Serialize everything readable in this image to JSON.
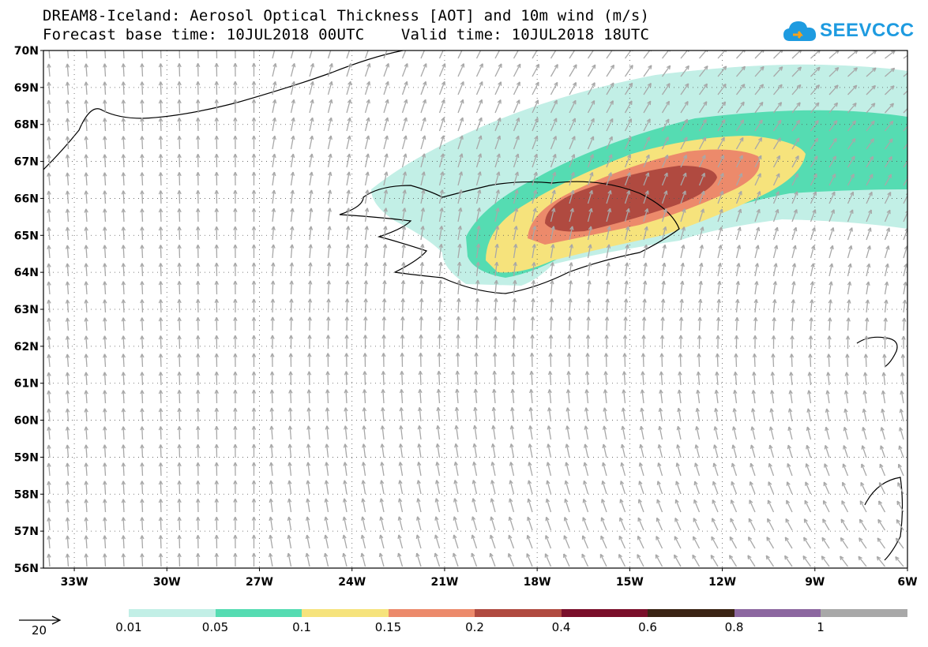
{
  "title": {
    "line1": "DREAM8-Iceland: Aerosol Optical Thickness [AOT] and 10m wind (m/s)",
    "line2": "Forecast base time: 10JUL2018 00UTC    Valid time: 10JUL2018 18UTC"
  },
  "logo": {
    "text": "SEEVCCC",
    "icon": "cloud-logo-icon",
    "color": "#1e9be0"
  },
  "map": {
    "lat_labels": [
      "70N",
      "69N",
      "68N",
      "67N",
      "66N",
      "65N",
      "64N",
      "63N",
      "62N",
      "61N",
      "60N",
      "59N",
      "58N",
      "57N",
      "56N"
    ],
    "lon_labels": [
      "33W",
      "30W",
      "27W",
      "24W",
      "21W",
      "18W",
      "15W",
      "12W",
      "9W",
      "6W"
    ],
    "lat_range": [
      56,
      70
    ],
    "lon_range": [
      -34.0,
      -6.0
    ],
    "grid": "dotted",
    "arrow_color": "#a8a8a8"
  },
  "colorbar": {
    "labels": [
      "0.01",
      "0.05",
      "0.1",
      "0.15",
      "0.2",
      "0.4",
      "0.6",
      "0.8",
      "1"
    ],
    "colors": [
      "#c2efe6",
      "#55dcb2",
      "#f6e37c",
      "#ec8a6b",
      "#b04a40",
      "#7a0f2a",
      "#3b2414",
      "#8c67a0",
      "#a8a8a8"
    ]
  },
  "reference_vector": {
    "label": "20"
  }
}
